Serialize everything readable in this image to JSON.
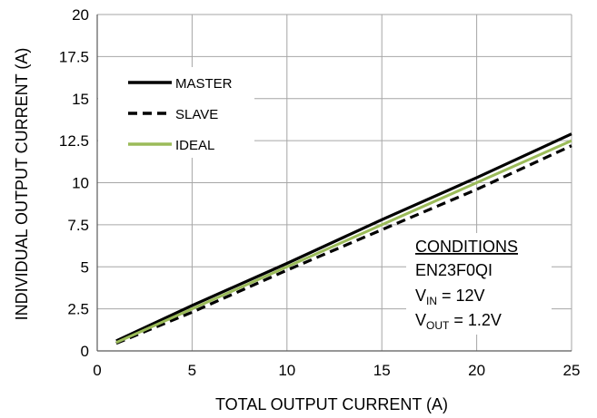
{
  "chart_data": {
    "type": "line",
    "xlabel": "TOTAL OUTPUT CURRENT (A)",
    "ylabel": "INDIVIDUAL OUTPUT CURRENT (A)",
    "xlim": [
      0,
      25
    ],
    "ylim": [
      0,
      20
    ],
    "xticks": [
      "0",
      "5",
      "10",
      "15",
      "20",
      "25"
    ],
    "yticks": [
      "0",
      "2.5",
      "5",
      "7.5",
      "10",
      "12.5",
      "15",
      "17.5",
      "20"
    ],
    "grid": true,
    "legend_position": "top-left",
    "series": [
      {
        "name": "MASTER",
        "style": "solid",
        "color": "#000000",
        "x": [
          1,
          5,
          10,
          15,
          20,
          25
        ],
        "y": [
          0.6,
          2.7,
          5.2,
          7.8,
          10.3,
          12.9
        ]
      },
      {
        "name": "SLAVE",
        "style": "dashed",
        "color": "#000000",
        "x": [
          1,
          5,
          10,
          15,
          20,
          25
        ],
        "y": [
          0.45,
          2.3,
          4.8,
          7.2,
          9.6,
          12.2
        ]
      },
      {
        "name": "IDEAL",
        "style": "solid",
        "color": "#9bbb59",
        "x": [
          1,
          5,
          10,
          15,
          20,
          25
        ],
        "y": [
          0.5,
          2.5,
          5.0,
          7.5,
          10.0,
          12.5
        ]
      }
    ],
    "annotations": {
      "heading": "CONDITIONS",
      "part": "EN23F0QI",
      "vin_main": "V",
      "vin_sub": "IN",
      "vin_value": " = 12V",
      "vout_main": "V",
      "vout_sub": "OUT",
      "vout_value": " = 1.2V"
    }
  }
}
